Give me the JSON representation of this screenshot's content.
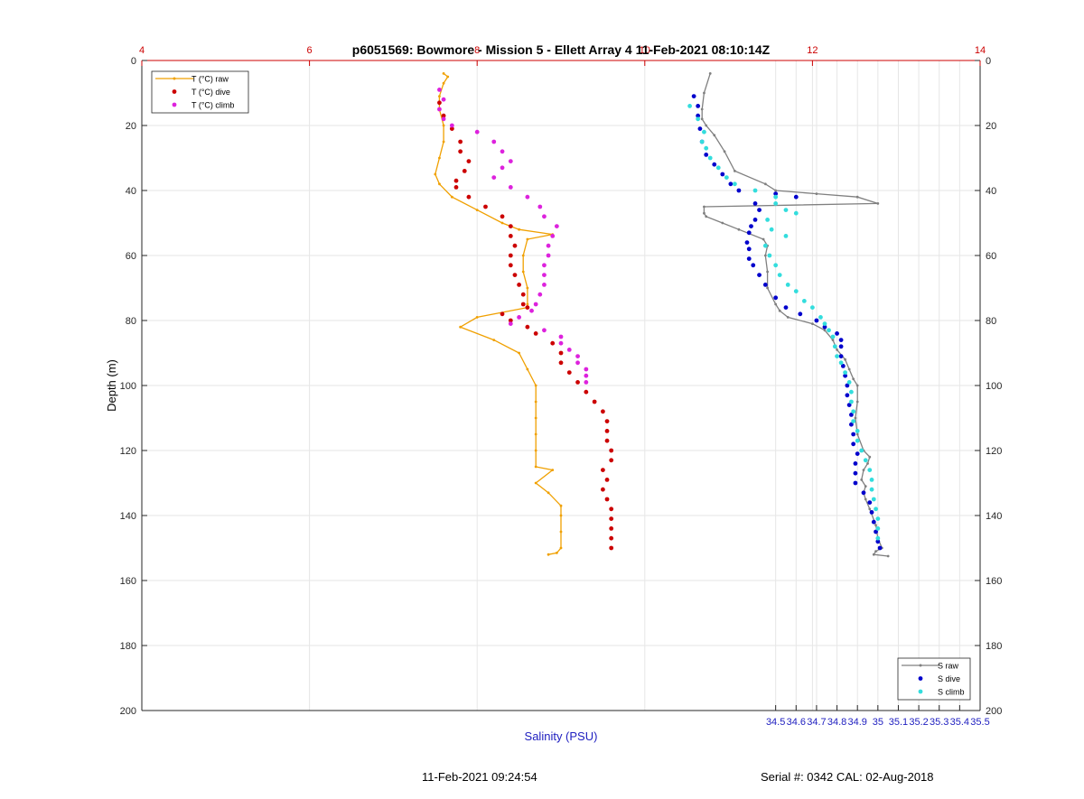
{
  "chart_data": {
    "type": "line",
    "title": "p6051569: Bowmore - Mission 5 - Ellett Array 4 11-Feb-2021 08:10:14Z",
    "ylabel": "Depth (m)",
    "xlabel_bottom": "Salinity (PSU)",
    "ylim": [
      0,
      200
    ],
    "y_reversed": true,
    "y_ticks": [
      0,
      20,
      40,
      60,
      80,
      100,
      120,
      140,
      160,
      180,
      200
    ],
    "x_top": {
      "min": 4,
      "max": 14,
      "ticks": [
        4,
        6,
        8,
        10,
        12,
        14
      ],
      "color": "#cc0000"
    },
    "x_bottom": {
      "min": 31.4,
      "max": 35.5,
      "ticks": [
        34.5,
        34.6,
        34.7,
        34.8,
        34.9,
        35,
        35.1,
        35.2,
        35.3,
        35.4,
        35.5
      ],
      "tick_labels": [
        "34.5",
        "34.6",
        "34.7",
        "34.8",
        "34.9",
        "35",
        "35.1",
        "35.2",
        "35.3",
        "35.4",
        "35.5"
      ],
      "color": "#2020c0"
    },
    "grid": true,
    "legend_temperature": {
      "placement": "top-left",
      "entries": [
        "T (°C) raw",
        "T (°C) dive",
        "T (°C) climb"
      ]
    },
    "legend_salinity": {
      "placement": "bottom-right",
      "entries": [
        "S raw",
        "S dive",
        "S climb"
      ]
    },
    "series": [
      {
        "name": "T (°C) raw",
        "axis": "top",
        "style": "line",
        "color": "#f0a000",
        "points": [
          [
            7.6,
            4
          ],
          [
            7.65,
            5
          ],
          [
            7.6,
            7
          ],
          [
            7.55,
            11
          ],
          [
            7.55,
            15
          ],
          [
            7.6,
            20
          ],
          [
            7.6,
            25
          ],
          [
            7.55,
            30
          ],
          [
            7.5,
            35
          ],
          [
            7.55,
            38
          ],
          [
            7.7,
            42
          ],
          [
            8.0,
            46
          ],
          [
            8.3,
            50
          ],
          [
            8.5,
            52
          ],
          [
            8.9,
            53.5
          ],
          [
            8.6,
            55
          ],
          [
            8.55,
            60
          ],
          [
            8.55,
            65
          ],
          [
            8.6,
            70
          ],
          [
            8.6,
            75
          ],
          [
            8.6,
            76
          ],
          [
            8.0,
            79
          ],
          [
            7.8,
            82
          ],
          [
            8.2,
            86
          ],
          [
            8.5,
            90
          ],
          [
            8.6,
            95
          ],
          [
            8.7,
            100
          ],
          [
            8.7,
            105
          ],
          [
            8.7,
            110
          ],
          [
            8.7,
            115
          ],
          [
            8.7,
            120
          ],
          [
            8.7,
            125
          ],
          [
            8.9,
            126
          ],
          [
            8.7,
            130
          ],
          [
            8.85,
            133
          ],
          [
            9.0,
            137
          ],
          [
            9.0,
            140
          ],
          [
            9.0,
            145
          ],
          [
            9.0,
            150
          ],
          [
            8.95,
            151.5
          ],
          [
            8.85,
            152
          ]
        ]
      },
      {
        "name": "T (°C) dive",
        "axis": "top",
        "style": "dots",
        "color": "#cc0000",
        "points": [
          [
            7.55,
            13
          ],
          [
            7.6,
            17
          ],
          [
            7.7,
            21
          ],
          [
            7.8,
            25
          ],
          [
            7.8,
            28
          ],
          [
            7.9,
            31
          ],
          [
            7.85,
            34
          ],
          [
            7.75,
            37
          ],
          [
            7.75,
            39
          ],
          [
            7.9,
            42
          ],
          [
            8.1,
            45
          ],
          [
            8.3,
            48
          ],
          [
            8.4,
            51
          ],
          [
            8.4,
            54
          ],
          [
            8.45,
            57
          ],
          [
            8.4,
            60
          ],
          [
            8.4,
            63
          ],
          [
            8.45,
            66
          ],
          [
            8.5,
            69
          ],
          [
            8.55,
            72
          ],
          [
            8.55,
            75
          ],
          [
            8.6,
            76
          ],
          [
            8.3,
            78
          ],
          [
            8.4,
            80
          ],
          [
            8.6,
            82
          ],
          [
            8.7,
            84
          ],
          [
            8.9,
            87
          ],
          [
            9.0,
            90
          ],
          [
            9.0,
            93
          ],
          [
            9.1,
            96
          ],
          [
            9.2,
            99
          ],
          [
            9.3,
            102
          ],
          [
            9.4,
            105
          ],
          [
            9.5,
            108
          ],
          [
            9.55,
            111
          ],
          [
            9.55,
            114
          ],
          [
            9.55,
            117
          ],
          [
            9.6,
            120
          ],
          [
            9.6,
            123
          ],
          [
            9.5,
            126
          ],
          [
            9.55,
            129
          ],
          [
            9.5,
            132
          ],
          [
            9.55,
            135
          ],
          [
            9.6,
            138
          ],
          [
            9.6,
            141
          ],
          [
            9.6,
            144
          ],
          [
            9.6,
            147
          ],
          [
            9.6,
            150
          ]
        ]
      },
      {
        "name": "T (°C) climb",
        "axis": "top",
        "style": "dots",
        "color": "#dd22dd",
        "points": [
          [
            7.55,
            9
          ],
          [
            7.6,
            12
          ],
          [
            7.55,
            15
          ],
          [
            7.6,
            18
          ],
          [
            7.7,
            20
          ],
          [
            8.0,
            22
          ],
          [
            8.2,
            25
          ],
          [
            8.3,
            28
          ],
          [
            8.4,
            31
          ],
          [
            8.3,
            33
          ],
          [
            8.2,
            36
          ],
          [
            8.4,
            39
          ],
          [
            8.6,
            42
          ],
          [
            8.75,
            45
          ],
          [
            8.8,
            48
          ],
          [
            8.95,
            51
          ],
          [
            8.9,
            54
          ],
          [
            8.85,
            57
          ],
          [
            8.85,
            60
          ],
          [
            8.8,
            63
          ],
          [
            8.8,
            66
          ],
          [
            8.8,
            69
          ],
          [
            8.75,
            72
          ],
          [
            8.7,
            75
          ],
          [
            8.65,
            77
          ],
          [
            8.5,
            79
          ],
          [
            8.4,
            81
          ],
          [
            8.8,
            83
          ],
          [
            9.0,
            85
          ],
          [
            9.0,
            87
          ],
          [
            9.1,
            89
          ],
          [
            9.2,
            91
          ],
          [
            9.2,
            93
          ],
          [
            9.3,
            95
          ],
          [
            9.3,
            97
          ],
          [
            9.3,
            99
          ]
        ]
      },
      {
        "name": "S raw",
        "axis": "bottom",
        "style": "line",
        "color": "#808080",
        "points": [
          [
            34.18,
            4
          ],
          [
            34.15,
            10
          ],
          [
            34.14,
            15
          ],
          [
            34.14,
            18
          ],
          [
            34.16,
            20
          ],
          [
            34.2,
            23
          ],
          [
            34.25,
            28
          ],
          [
            34.3,
            34
          ],
          [
            34.45,
            38
          ],
          [
            34.5,
            40
          ],
          [
            34.7,
            41
          ],
          [
            34.9,
            42
          ],
          [
            35.0,
            44
          ],
          [
            34.15,
            45
          ],
          [
            34.15,
            47
          ],
          [
            34.16,
            48
          ],
          [
            34.24,
            50
          ],
          [
            34.32,
            52
          ],
          [
            34.44,
            55
          ],
          [
            34.46,
            57
          ],
          [
            34.45,
            60
          ],
          [
            34.46,
            65
          ],
          [
            34.46,
            70
          ],
          [
            34.5,
            75
          ],
          [
            34.52,
            77
          ],
          [
            34.56,
            79
          ],
          [
            34.68,
            81
          ],
          [
            34.74,
            83
          ],
          [
            34.78,
            86
          ],
          [
            34.8,
            89
          ],
          [
            34.84,
            92
          ],
          [
            34.86,
            95
          ],
          [
            34.88,
            98
          ],
          [
            34.9,
            100
          ],
          [
            34.9,
            105
          ],
          [
            34.89,
            110
          ],
          [
            34.9,
            115
          ],
          [
            34.93,
            120
          ],
          [
            34.96,
            122
          ],
          [
            34.95,
            124
          ],
          [
            34.93,
            126
          ],
          [
            34.92,
            129
          ],
          [
            34.94,
            131
          ],
          [
            34.93,
            133
          ],
          [
            34.94,
            135
          ],
          [
            34.96,
            138
          ],
          [
            34.99,
            143
          ],
          [
            35.0,
            147
          ],
          [
            35.02,
            150
          ],
          [
            34.99,
            151
          ],
          [
            34.98,
            152
          ],
          [
            35.05,
            152.5
          ]
        ]
      },
      {
        "name": "S dive",
        "axis": "bottom",
        "style": "dots",
        "color": "#0000cc",
        "points": [
          [
            34.1,
            11
          ],
          [
            34.12,
            14
          ],
          [
            34.12,
            17
          ],
          [
            34.13,
            21
          ],
          [
            34.14,
            25
          ],
          [
            34.16,
            29
          ],
          [
            34.2,
            32
          ],
          [
            34.24,
            35
          ],
          [
            34.28,
            38
          ],
          [
            34.32,
            40
          ],
          [
            34.5,
            41
          ],
          [
            34.6,
            42
          ],
          [
            34.4,
            44
          ],
          [
            34.42,
            46
          ],
          [
            34.4,
            49
          ],
          [
            34.38,
            51
          ],
          [
            34.37,
            53
          ],
          [
            34.36,
            56
          ],
          [
            34.37,
            58
          ],
          [
            34.37,
            61
          ],
          [
            34.39,
            63
          ],
          [
            34.42,
            66
          ],
          [
            34.45,
            69
          ],
          [
            34.5,
            73
          ],
          [
            34.55,
            76
          ],
          [
            34.62,
            78
          ],
          [
            34.7,
            80
          ],
          [
            34.74,
            82
          ],
          [
            34.8,
            84
          ],
          [
            34.82,
            86
          ],
          [
            34.82,
            88
          ],
          [
            34.82,
            91
          ],
          [
            34.83,
            94
          ],
          [
            34.84,
            97
          ],
          [
            34.85,
            100
          ],
          [
            34.85,
            103
          ],
          [
            34.86,
            106
          ],
          [
            34.87,
            109
          ],
          [
            34.87,
            112
          ],
          [
            34.88,
            115
          ],
          [
            34.88,
            118
          ],
          [
            34.9,
            121
          ],
          [
            34.89,
            124
          ],
          [
            34.89,
            127
          ],
          [
            34.89,
            130
          ],
          [
            34.93,
            133
          ],
          [
            34.96,
            136
          ],
          [
            34.97,
            139
          ],
          [
            34.98,
            142
          ],
          [
            34.99,
            145
          ],
          [
            35.0,
            148
          ],
          [
            35.01,
            150
          ]
        ]
      },
      {
        "name": "S climb",
        "axis": "bottom",
        "style": "dots",
        "color": "#33dddd",
        "points": [
          [
            34.08,
            14
          ],
          [
            34.12,
            18
          ],
          [
            34.15,
            22
          ],
          [
            34.14,
            25
          ],
          [
            34.16,
            27
          ],
          [
            34.18,
            30
          ],
          [
            34.22,
            33
          ],
          [
            34.26,
            36
          ],
          [
            34.3,
            38
          ],
          [
            34.4,
            40
          ],
          [
            34.5,
            42
          ],
          [
            34.5,
            44
          ],
          [
            34.55,
            46
          ],
          [
            34.6,
            47
          ],
          [
            34.46,
            49
          ],
          [
            34.48,
            52
          ],
          [
            34.55,
            54
          ],
          [
            34.45,
            57
          ],
          [
            34.47,
            60
          ],
          [
            34.5,
            63
          ],
          [
            34.52,
            66
          ],
          [
            34.56,
            69
          ],
          [
            34.6,
            71
          ],
          [
            34.64,
            74
          ],
          [
            34.68,
            76
          ],
          [
            34.72,
            79
          ],
          [
            34.74,
            81
          ],
          [
            34.76,
            83
          ],
          [
            34.78,
            85
          ],
          [
            34.79,
            88
          ],
          [
            34.8,
            91
          ],
          [
            34.82,
            93
          ],
          [
            34.84,
            96
          ],
          [
            34.86,
            99
          ],
          [
            34.87,
            102
          ],
          [
            34.87,
            105
          ],
          [
            34.88,
            108
          ],
          [
            34.88,
            111
          ],
          [
            34.9,
            114
          ],
          [
            34.9,
            117
          ],
          [
            34.92,
            120
          ],
          [
            34.94,
            123
          ],
          [
            34.96,
            126
          ],
          [
            34.97,
            129
          ],
          [
            34.97,
            132
          ],
          [
            34.98,
            135
          ],
          [
            34.99,
            138
          ],
          [
            35.0,
            141
          ],
          [
            35.0,
            144
          ],
          [
            35.0,
            147
          ]
        ]
      }
    ]
  },
  "footer": {
    "timestamp": "11-Feb-2021 09:24:54",
    "serial": "Serial #: 0342  CAL: 02-Aug-2018"
  }
}
